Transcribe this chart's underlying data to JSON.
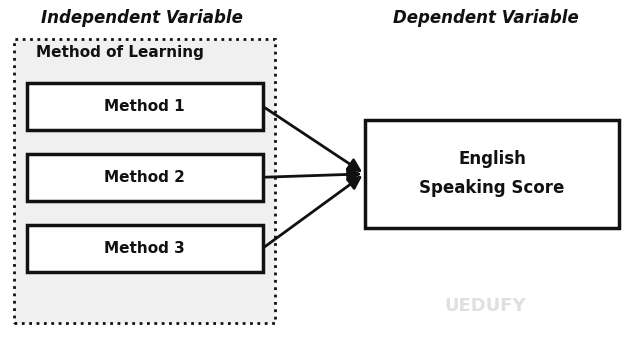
{
  "title_iv": "Independent Variable",
  "title_dv": "Dependent Variable",
  "iv_group_label": "Method of Learning",
  "iv_methods": [
    "Method 1",
    "Method 2",
    "Method 3"
  ],
  "dv_label": "English\nSpeaking Score",
  "bg_color": "#ffffff",
  "box_bg_iv": "#ffffff",
  "box_bg_outer": "#f0f0f0",
  "box_bg_dv": "#ffffff",
  "box_edge_color": "#111111",
  "dashed_box_color": "#111111",
  "arrow_color": "#111111",
  "title_color": "#111111",
  "watermark_color": "#cccccc",
  "watermark_text": "UEDUFY",
  "figsize": [
    6.4,
    3.41
  ],
  "dpi": 100
}
